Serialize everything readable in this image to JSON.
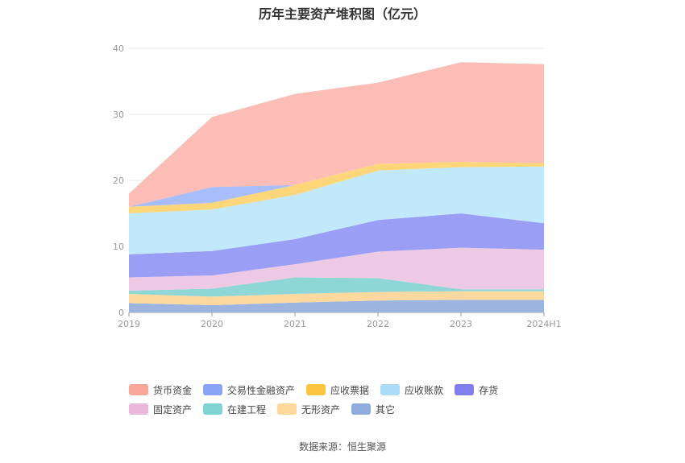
{
  "source_text": "数据来源：恒生聚源",
  "chart_data": {
    "type": "area",
    "stacked": true,
    "title": "历年主要资产堆积图（亿元）",
    "x": [
      "2019",
      "2020",
      "2021",
      "2022",
      "2023",
      "2024H1"
    ],
    "ylim": [
      0,
      40
    ],
    "yticks": [
      0,
      10,
      20,
      30,
      40
    ],
    "grid": true,
    "legend_position": "bottom",
    "series": [
      {
        "name": "其它",
        "color": "#9bb5e0",
        "values": [
          1.4,
          1.1,
          1.5,
          1.8,
          1.9,
          1.9
        ]
      },
      {
        "name": "无形资产",
        "color": "#fdd9a0",
        "values": [
          1.4,
          1.3,
          1.3,
          1.3,
          1.3,
          1.3
        ]
      },
      {
        "name": "在建工程",
        "color": "#8fd6d6",
        "values": [
          0.5,
          1.2,
          2.5,
          2.1,
          0.3,
          0.3
        ]
      },
      {
        "name": "固定资产",
        "color": "#eec9e3",
        "values": [
          2.0,
          2.0,
          2.0,
          4.0,
          6.3,
          6.0
        ]
      },
      {
        "name": "存货",
        "color": "#9a9ef4",
        "values": [
          3.5,
          3.7,
          3.8,
          4.8,
          5.2,
          4.0
        ]
      },
      {
        "name": "应收账款",
        "color": "#c2e8fb",
        "values": [
          6.2,
          6.3,
          6.7,
          7.5,
          7.0,
          8.6
        ]
      },
      {
        "name": "应收票据",
        "color": "#fcd678",
        "values": [
          1.0,
          1.0,
          1.5,
          1.0,
          0.8,
          0.5
        ]
      },
      {
        "name": "交易性金融资产",
        "color": "#a8bdfb",
        "values": [
          0.0,
          2.4,
          0.0,
          0.0,
          0.0,
          0.0
        ]
      },
      {
        "name": "货币资金",
        "color": "#fbbdb6",
        "values": [
          2.0,
          10.6,
          13.8,
          12.3,
          15.1,
          15.0
        ]
      }
    ],
    "legend_order": [
      "货币资金",
      "交易性金融资产",
      "应收票据",
      "应收账款",
      "存货",
      "固定资产",
      "在建工程",
      "无形资产",
      "其它"
    ],
    "legend_colors": {
      "货币资金": "#f8a59a",
      "交易性金融资产": "#8aa3f7",
      "应收票据": "#fcc540",
      "应收账款": "#a8dcf7",
      "存货": "#7f7ff0",
      "固定资产": "#eab8da",
      "在建工程": "#7fd4d4",
      "无形资产": "#fdd898",
      "其它": "#91acde"
    }
  }
}
